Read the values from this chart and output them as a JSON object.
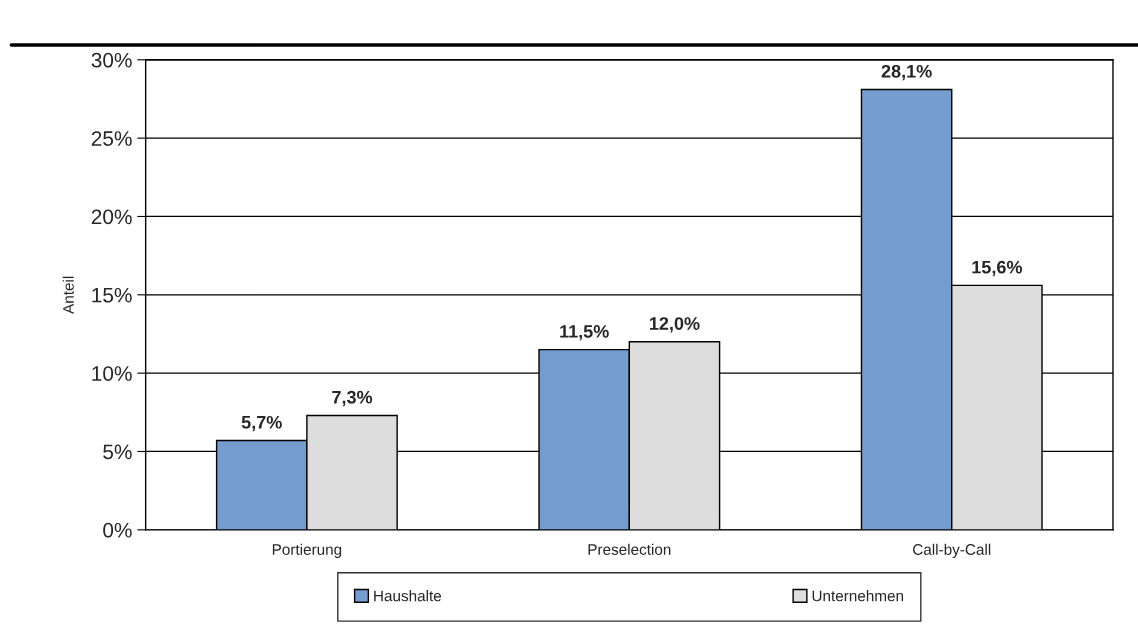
{
  "chart_data": {
    "type": "bar",
    "ylabel": "Anteil",
    "categories": [
      "Portierung",
      "Preselection",
      "Call-by-Call"
    ],
    "series": [
      {
        "name": "Haushalte",
        "color": "#759ccf",
        "values": [
          5.7,
          11.5,
          28.1
        ],
        "value_labels": [
          "5,7%",
          "11,5%",
          "28,1%"
        ]
      },
      {
        "name": "Unternehmen",
        "color": "#dddddd",
        "values": [
          7.3,
          12.0,
          15.6
        ],
        "value_labels": [
          "7,3%",
          "12,0%",
          "15,6%"
        ]
      }
    ],
    "ylim": [
      0,
      30
    ],
    "yticks": [
      {
        "value": 0,
        "label": "0%"
      },
      {
        "value": 5,
        "label": "5%"
      },
      {
        "value": 10,
        "label": "10%"
      },
      {
        "value": 15,
        "label": "15%"
      },
      {
        "value": 20,
        "label": "20%"
      },
      {
        "value": 25,
        "label": "25%"
      },
      {
        "value": 30,
        "label": "30%"
      }
    ],
    "grid": "y",
    "legend": "bottom"
  }
}
